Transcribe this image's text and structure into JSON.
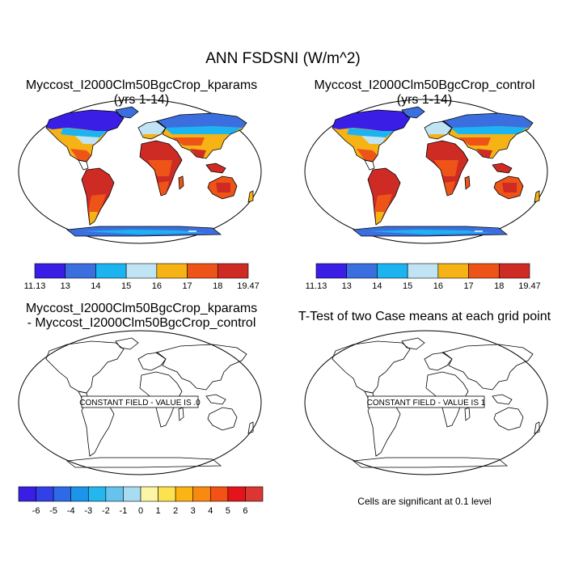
{
  "title": "ANN FSDSNI (W/m^2)",
  "panels": {
    "case1": {
      "title_line1": "Myccost_I2000Clm50BgcCrop_kparams",
      "title_line2": "(yrs 1-14)"
    },
    "case2": {
      "title_line1": "Myccost_I2000Clm50BgcCrop_control",
      "title_line2": "(yrs 1-14)"
    },
    "difference": {
      "title_line1": "Myccost_I2000Clm50BgcCrop_kparams",
      "title_line2": "- Myccost_I2000Clm50BgcCrop_control",
      "constant_field_label": "CONSTANT FIELD - VALUE IS .0"
    },
    "ttest": {
      "title_line1": "T-Test of two Case means at each grid point",
      "constant_field_label": "CONSTANT FIELD - VALUE IS 1",
      "significance_note": "Cells are significant at 0.1 level"
    }
  },
  "colorbar_main": {
    "labels": [
      "11.13",
      "13",
      "14",
      "15",
      "16",
      "17",
      "18",
      "19.47"
    ],
    "colors": [
      "#3a1ee6",
      "#3b6fdf",
      "#1cb4f0",
      "#c0e4f4",
      "#f6b315",
      "#ee5418",
      "#cf2b25"
    ]
  },
  "colorbar_diff": {
    "labels": [
      "-6",
      "-5",
      "-4",
      "-3",
      "-2",
      "-1",
      "0",
      "1",
      "2",
      "3",
      "4",
      "5",
      "6"
    ],
    "colors": [
      "#3a1ee6",
      "#3140e8",
      "#2d6ae8",
      "#1b94ea",
      "#24b6ee",
      "#66c3ee",
      "#a8dcf3",
      "#fcf5a5",
      "#fde24f",
      "#fbb414",
      "#f98a0f",
      "#f55114",
      "#e4141a",
      "#d93634"
    ]
  }
}
